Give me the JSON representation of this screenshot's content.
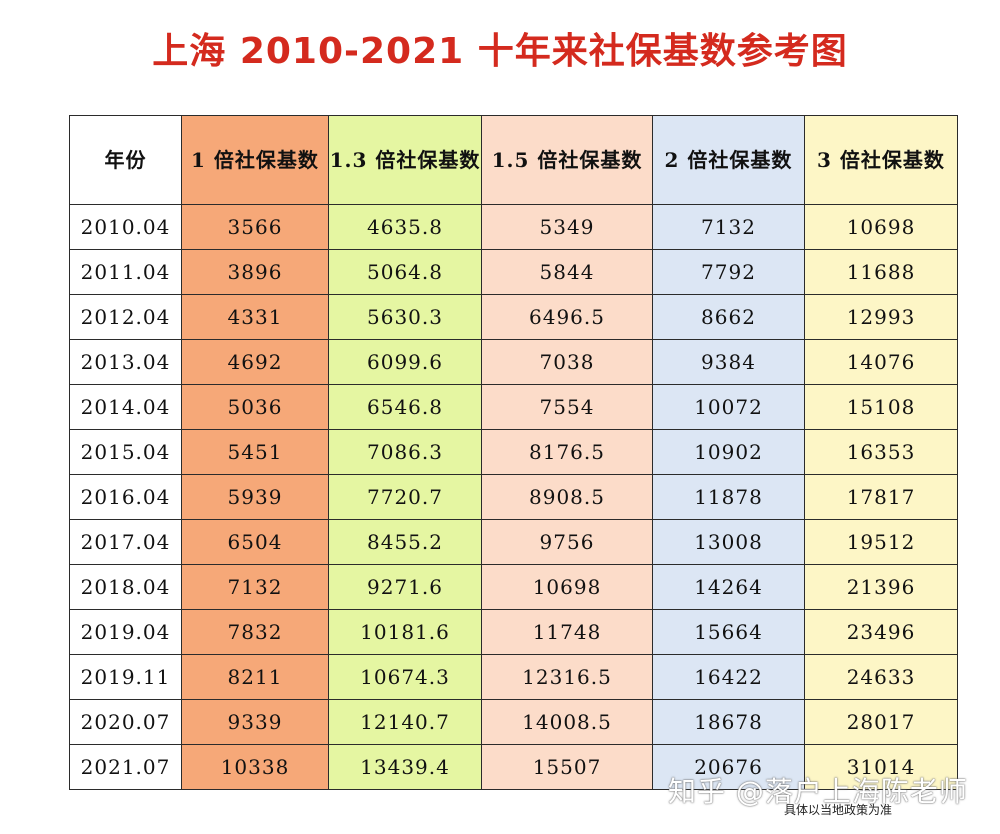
{
  "title": "上海 2010-2021 十年来社保基数参考图",
  "headers": [
    "年份",
    "1 倍社保基数",
    "1.3 倍社保基数",
    "1.5 倍社保基数",
    "2 倍社保基数",
    "3 倍社保基数"
  ],
  "rows": [
    [
      "2010.04",
      "3566",
      "4635.8",
      "5349",
      "7132",
      "10698"
    ],
    [
      "2011.04",
      "3896",
      "5064.8",
      "5844",
      "7792",
      "11688"
    ],
    [
      "2012.04",
      "4331",
      "5630.3",
      "6496.5",
      "8662",
      "12993"
    ],
    [
      "2013.04",
      "4692",
      "6099.6",
      "7038",
      "9384",
      "14076"
    ],
    [
      "2014.04",
      "5036",
      "6546.8",
      "7554",
      "10072",
      "15108"
    ],
    [
      "2015.04",
      "5451",
      "7086.3",
      "8176.5",
      "10902",
      "16353"
    ],
    [
      "2016.04",
      "5939",
      "7720.7",
      "8908.5",
      "11878",
      "17817"
    ],
    [
      "2017.04",
      "6504",
      "8455.2",
      "9756",
      "13008",
      "19512"
    ],
    [
      "2018.04",
      "7132",
      "9271.6",
      "10698",
      "14264",
      "21396"
    ],
    [
      "2019.04",
      "7832",
      "10181.6",
      "11748",
      "15664",
      "23496"
    ],
    [
      "2019.11",
      "8211",
      "10674.3",
      "12316.5",
      "16422",
      "24633"
    ],
    [
      "2020.07",
      "9339",
      "12140.7",
      "14008.5",
      "18678",
      "28017"
    ],
    [
      "2021.07",
      "10338",
      "13439.4",
      "15507",
      "20676",
      "31014"
    ]
  ],
  "watermark": "知乎 @落户上海陈老师",
  "note": "具体以当地政策为准"
}
